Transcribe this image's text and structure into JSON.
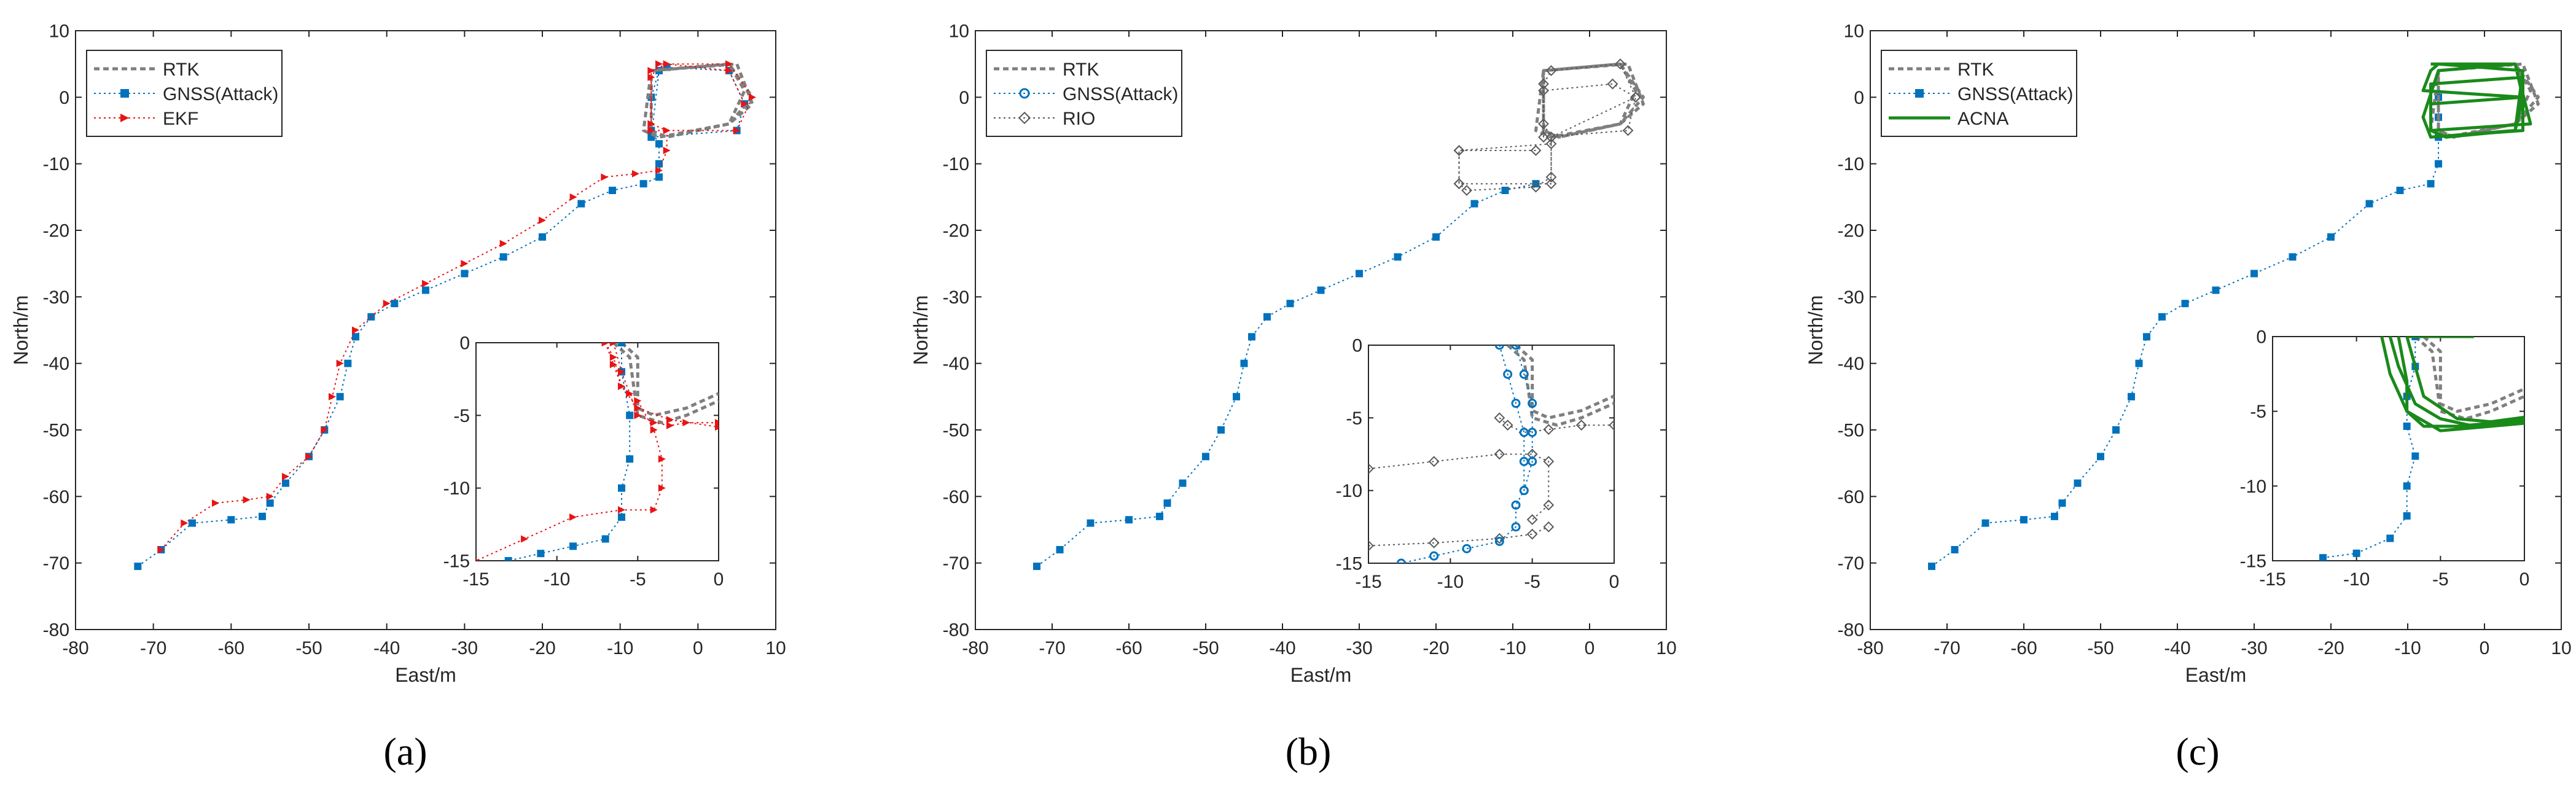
{
  "colors": {
    "rtk": "#7f7f7f",
    "gnss": "#0072bd",
    "ekf": "#e81414",
    "rio": "#5a5a5a",
    "acna": "#1a8a1a",
    "axis": "#262626"
  },
  "chart_data": [
    {
      "type": "line",
      "panel": "a",
      "caption": "(a)",
      "xlabel": "East/m",
      "ylabel": "North/m",
      "xlim": [
        -80,
        10
      ],
      "ylim": [
        -80,
        10
      ],
      "xticks": [
        -80,
        -70,
        -60,
        -50,
        -40,
        -30,
        -20,
        -10,
        0,
        10
      ],
      "yticks": [
        -80,
        -70,
        -60,
        -50,
        -40,
        -30,
        -20,
        -10,
        0,
        10
      ],
      "legend_position": "top-left",
      "series": [
        {
          "name": "RTK",
          "style": "rtk",
          "x": [
            4,
            -6,
            -6,
            -4,
            4,
            7,
            4,
            -6,
            -6,
            -4,
            4,
            6,
            4,
            -6,
            -7,
            -5,
            4,
            7,
            5,
            -6
          ],
          "y": [
            5,
            4,
            -5,
            -6,
            -4,
            0,
            5,
            4,
            -5,
            -6,
            -4,
            1,
            5,
            4,
            -5,
            -6,
            -4,
            -1,
            5,
            4
          ]
        },
        {
          "name": "GNSS(Attack)",
          "style": "gnss",
          "x": [
            -72,
            -69,
            -65,
            -60,
            -56,
            -55,
            -53,
            -50,
            -48,
            -46,
            -45,
            -44,
            -42,
            -39,
            -35,
            -30,
            -25,
            -20,
            -15,
            -11,
            -7,
            -5,
            -5,
            -5,
            -6,
            -6,
            -5,
            -4,
            4,
            6,
            5,
            -6,
            -5
          ],
          "y": [
            -70.5,
            -68,
            -64,
            -63.5,
            -63,
            -61,
            -58,
            -54,
            -50,
            -45,
            -40,
            -36,
            -33,
            -31,
            -29,
            -26.5,
            -24,
            -21,
            -16,
            -14,
            -13,
            -12,
            -10,
            -7,
            -5,
            0,
            4,
            4.5,
            4,
            -1,
            -5,
            -6,
            4
          ]
        },
        {
          "name": "EKF",
          "style": "ekf",
          "x": [
            -69,
            -66,
            -62,
            -58,
            -55,
            -53,
            -50,
            -48,
            -47,
            -46,
            -44,
            -40,
            -35,
            -30,
            -25,
            -20,
            -16,
            -12,
            -8,
            -5,
            -4,
            -4,
            -6,
            -6,
            -5,
            4,
            7,
            5,
            -6,
            -6,
            -4,
            4,
            6
          ],
          "y": [
            -68,
            -64,
            -61,
            -60.5,
            -60,
            -57,
            -54,
            -50,
            -45,
            -40,
            -35,
            -31,
            -28,
            -25,
            -22,
            -18.5,
            -15,
            -12,
            -11.5,
            -11,
            -8,
            -5,
            -4,
            3,
            5,
            5,
            0,
            -5,
            -5,
            4,
            5,
            4,
            -1
          ]
        }
      ],
      "inset": {
        "xlim": [
          -15,
          0
        ],
        "ylim": [
          -15,
          0
        ],
        "xticks": [
          -15,
          -10,
          -5,
          0
        ],
        "yticks": [
          -15,
          -10,
          -5,
          0
        ],
        "series": [
          {
            "style": "rtk",
            "x": [
              -6.5,
              -5.5,
              -5,
              -3.5,
              -2,
              0
            ],
            "y": [
              0,
              -1,
              -5,
              -5.5,
              -5,
              -4
            ]
          },
          {
            "style": "rtk",
            "x": [
              -6,
              -5,
              -5,
              -4,
              -2,
              0
            ],
            "y": [
              0,
              -1,
              -4.5,
              -5,
              -4.5,
              -3.5
            ]
          },
          {
            "style": "gnss",
            "x": [
              -6,
              -6,
              -5.5,
              -5.5,
              -6,
              -6,
              -7,
              -9,
              -11,
              -13
            ],
            "y": [
              0,
              -2,
              -5,
              -8,
              -10,
              -12,
              -13.5,
              -14,
              -14.5,
              -15
            ]
          },
          {
            "style": "ekf",
            "x": [
              -7,
              -6.5,
              -6,
              -5,
              -4,
              -3.5,
              -3.5,
              -4,
              -6,
              -9,
              -12,
              -15
            ],
            "y": [
              0,
              -1,
              -3,
              -4,
              -6,
              -8,
              -10,
              -11.5,
              -11.5,
              -12,
              -13.5,
              -15
            ]
          },
          {
            "style": "ekf",
            "x": [
              -6.5,
              -6,
              -5.5,
              -5,
              -4,
              -3,
              -2,
              0
            ],
            "y": [
              0,
              -2,
              -3.5,
              -5,
              -5.5,
              -5.7,
              -5.5,
              -5.5
            ]
          },
          {
            "style": "ekf",
            "x": [
              -7,
              -6.5,
              -6,
              -5,
              -3,
              0
            ],
            "y": [
              0,
              -1.5,
              -3,
              -4.5,
              -5.3,
              -5.8
            ]
          }
        ]
      }
    },
    {
      "type": "line",
      "panel": "b",
      "caption": "(b)",
      "xlabel": "East/m",
      "ylabel": "North/m",
      "xlim": [
        -80,
        10
      ],
      "ylim": [
        -80,
        10
      ],
      "xticks": [
        -80,
        -70,
        -60,
        -50,
        -40,
        -30,
        -20,
        -10,
        0,
        10
      ],
      "yticks": [
        -80,
        -70,
        -60,
        -50,
        -40,
        -30,
        -20,
        -10,
        0,
        10
      ],
      "legend_position": "top-left",
      "series": [
        {
          "name": "RTK",
          "style": "rtk",
          "x": [
            4,
            -6,
            -6,
            -4,
            4,
            7,
            4,
            -6,
            -6,
            -4,
            4,
            6,
            4,
            -6,
            -7,
            -5,
            4,
            7,
            5,
            -6
          ],
          "y": [
            5,
            4,
            -5,
            -6,
            -4,
            0,
            5,
            4,
            -5,
            -6,
            -4,
            1,
            5,
            4,
            -5,
            -6,
            -4,
            -1,
            5,
            4
          ]
        },
        {
          "name": "GNSS(Attack)",
          "style": "gnss",
          "x": [
            -72,
            -69,
            -65,
            -60,
            -56,
            -55,
            -53,
            -50,
            -48,
            -46,
            -45,
            -44,
            -42,
            -39,
            -35,
            -30,
            -25,
            -20,
            -15,
            -11,
            -7
          ],
          "y": [
            -70.5,
            -68,
            -64,
            -63.5,
            -63,
            -61,
            -58,
            -54,
            -50,
            -45,
            -40,
            -36,
            -33,
            -31,
            -29,
            -26.5,
            -24,
            -21,
            -16,
            -14,
            -13
          ]
        },
        {
          "name": "RIO",
          "style": "rio",
          "x": [
            -7,
            -17,
            -17,
            -16,
            -7,
            -5,
            -5,
            -6,
            -6,
            3,
            6,
            5,
            -6,
            -6,
            -5,
            4,
            6,
            -5,
            -5,
            -17,
            -17,
            -5
          ],
          "y": [
            -8,
            -8,
            -13,
            -14,
            -13.5,
            -12,
            -6,
            -4,
            1,
            2,
            0,
            -5,
            -6,
            2,
            4,
            5,
            0,
            -6,
            -13,
            -13,
            -8,
            -7
          ]
        }
      ],
      "inset": {
        "xlim": [
          -15,
          0
        ],
        "ylim": [
          -15,
          0
        ],
        "xticks": [
          -15,
          -10,
          -5,
          0
        ],
        "yticks": [
          -15,
          -10,
          -5,
          0
        ],
        "series": [
          {
            "style": "rtk",
            "x": [
              -6.5,
              -5.5,
              -5,
              -3.5,
              -2,
              0
            ],
            "y": [
              0,
              -1,
              -5,
              -5.5,
              -5,
              -4
            ]
          },
          {
            "style": "rtk",
            "x": [
              -6,
              -5,
              -5,
              -4,
              -2,
              0
            ],
            "y": [
              0,
              -1,
              -4.5,
              -5,
              -4.5,
              -3.5
            ]
          },
          {
            "style": "rio",
            "x": [
              -15,
              -11,
              -7,
              -5,
              -4,
              -4,
              -5
            ],
            "y": [
              -8.5,
              -8,
              -7.5,
              -7.5,
              -8,
              -11,
              -12
            ]
          },
          {
            "style": "rio",
            "x": [
              -7,
              -6.5,
              -5.5,
              -4,
              -2,
              0
            ],
            "y": [
              -5,
              -5.5,
              -6,
              -5.8,
              -5.5,
              -5.5
            ]
          },
          {
            "style": "rio",
            "x": [
              -15,
              -11,
              -7,
              -5,
              -4
            ],
            "y": [
              -13.8,
              -13.6,
              -13.3,
              -13,
              -12.5
            ]
          },
          {
            "style": "gnss",
            "x": [
              -7,
              -6.5,
              -6,
              -5.5,
              -5.5,
              -5.5,
              -6,
              -6,
              -7,
              -9,
              -11,
              -13
            ],
            "y": [
              0,
              -2,
              -4,
              -6,
              -8,
              -10,
              -11,
              -12.5,
              -13.5,
              -14,
              -14.5,
              -15
            ]
          },
          {
            "style": "gnss",
            "x": [
              -6,
              -5.5,
              -5,
              -5,
              -5,
              -5.5
            ],
            "y": [
              0,
              -2,
              -4,
              -6,
              -8,
              -10
            ]
          }
        ]
      }
    },
    {
      "type": "line",
      "panel": "c",
      "caption": "(c)",
      "xlabel": "East/m",
      "ylabel": "North/m",
      "xlim": [
        -80,
        10
      ],
      "ylim": [
        -80,
        10
      ],
      "xticks": [
        -80,
        -70,
        -60,
        -50,
        -40,
        -30,
        -20,
        -10,
        0,
        10
      ],
      "yticks": [
        -80,
        -70,
        -60,
        -50,
        -40,
        -30,
        -20,
        -10,
        0,
        10
      ],
      "legend_position": "top-left",
      "series": [
        {
          "name": "RTK",
          "style": "rtk",
          "x": [
            4,
            -6,
            -6,
            -4,
            4,
            7,
            4,
            -6,
            -6,
            -4,
            4,
            6,
            4,
            -6,
            -7,
            -5,
            4,
            7,
            5,
            -6
          ],
          "y": [
            5,
            4,
            -5,
            -6,
            -4,
            0,
            5,
            4,
            -5,
            -6,
            -4,
            1,
            5,
            4,
            -5,
            -6,
            -4,
            -1,
            5,
            4
          ]
        },
        {
          "name": "GNSS(Attack)",
          "style": "gnss",
          "x": [
            -72,
            -69,
            -65,
            -60,
            -56,
            -55,
            -53,
            -50,
            -48,
            -46,
            -45,
            -44,
            -42,
            -39,
            -35,
            -30,
            -25,
            -20,
            -15,
            -11,
            -7,
            -6,
            -6,
            -6,
            -6
          ],
          "y": [
            -70.5,
            -68,
            -64,
            -63.5,
            -63,
            -61,
            -58,
            -54,
            -50,
            -45,
            -40,
            -36,
            -33,
            -31,
            -29,
            -26.5,
            -24,
            -21,
            -16,
            -14,
            -13,
            -10,
            -6,
            -3,
            0
          ]
        },
        {
          "name": "ACNA",
          "style": "acna",
          "x": [
            -7,
            4,
            5,
            -7,
            -7,
            -5,
            4,
            5,
            -8,
            -7,
            -6,
            5,
            4,
            -7,
            -8,
            -6,
            4,
            6,
            -7,
            -7,
            5,
            5,
            -7
          ],
          "y": [
            5,
            5,
            0,
            -1,
            -5,
            -6,
            -5,
            0,
            1,
            4,
            5,
            4,
            -5,
            -6,
            -3,
            4,
            5,
            -4,
            -5,
            2,
            3,
            -5,
            -6
          ]
        }
      ],
      "inset": {
        "xlim": [
          -15,
          0
        ],
        "ylim": [
          -15,
          0
        ],
        "xticks": [
          -15,
          -10,
          -5,
          0
        ],
        "yticks": [
          -15,
          -10,
          -5,
          0
        ],
        "series": [
          {
            "style": "rtk",
            "x": [
              -6.5,
              -5.5,
              -5,
              -3.5,
              -2,
              0
            ],
            "y": [
              0,
              -1,
              -5,
              -5.5,
              -5,
              -4
            ]
          },
          {
            "style": "rtk",
            "x": [
              -6,
              -5,
              -5,
              -4,
              -2,
              0
            ],
            "y": [
              0,
              -1,
              -4.5,
              -5,
              -4.5,
              -3.5
            ]
          },
          {
            "style": "gnss",
            "x": [
              -6.5,
              -6.5,
              -7,
              -7,
              -6.5,
              -7,
              -7,
              -8,
              -10,
              -12
            ],
            "y": [
              0,
              -2,
              -4,
              -6,
              -8,
              -10,
              -12,
              -13.5,
              -14.5,
              -14.8
            ]
          },
          {
            "style": "acna",
            "x": [
              -7,
              -3
            ],
            "y": [
              0,
              0
            ]
          },
          {
            "style": "acna",
            "x": [
              -7.5,
              -7,
              -7,
              -6,
              -4,
              -2,
              0
            ],
            "y": [
              0,
              -3,
              -5,
              -6,
              -6,
              -5.8,
              -5.5
            ]
          },
          {
            "style": "acna",
            "x": [
              -8,
              -7.5,
              -6.5,
              -5,
              -3,
              -1,
              0
            ],
            "y": [
              0,
              -2,
              -4.5,
              -5.5,
              -6,
              -5.8,
              -5.6
            ]
          },
          {
            "style": "acna",
            "x": [
              -7,
              -6.5,
              -6,
              -4,
              -2,
              0
            ],
            "y": [
              0,
              -2,
              -4,
              -5.5,
              -5.7,
              -5.4
            ]
          },
          {
            "style": "acna",
            "x": [
              -8.5,
              -8,
              -7,
              -5,
              -2,
              0
            ],
            "y": [
              0,
              -2.5,
              -5,
              -6.3,
              -6,
              -5.8
            ]
          }
        ]
      }
    }
  ]
}
